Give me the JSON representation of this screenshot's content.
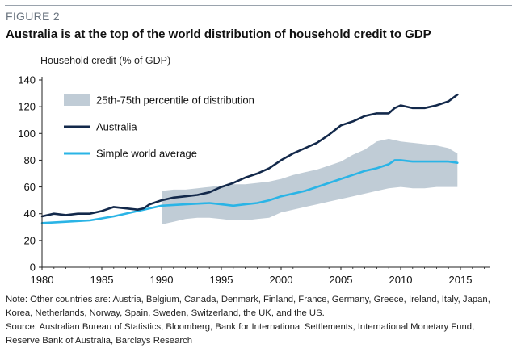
{
  "figure": {
    "label": "FIGURE 2",
    "title": "Australia is at the top of the world distribution of household credit to GDP"
  },
  "notes": [
    "Note: Other countries are: Austria, Belgium, Canada, Denmark, Finland, France, Germany, Greece, Ireland, Italy, Japan,",
    "Korea, Netherlands, Norway, Spain, Sweden, Switzerland, the UK, and the US.",
    "Source: Australian Bureau of Statistics, Bloomberg, Bank for International Settlements, International Monetary Fund,",
    "Reserve Bank of Australia, Barclays Research"
  ],
  "colors": {
    "australia": "#13294b",
    "world": "#2ab4e6",
    "band": "#c0ccd6",
    "axis": "#222222"
  },
  "chart_data": {
    "type": "line",
    "title": "Australia is at the top of the world distribution of household credit to GDP",
    "xlabel": "",
    "ylabel": "Household credit (% of GDP)",
    "xlim": [
      1980,
      2017.5
    ],
    "ylim": [
      0,
      140
    ],
    "xticks": [
      1980,
      1985,
      1990,
      1995,
      2000,
      2005,
      2010,
      2015
    ],
    "yticks": [
      0,
      20,
      40,
      60,
      80,
      100,
      120,
      140
    ],
    "legend": [
      {
        "key": "band",
        "label": "25th-75th percentile of distribution"
      },
      {
        "key": "australia",
        "label": "Australia"
      },
      {
        "key": "world",
        "label": "Simple world average"
      }
    ],
    "series": [
      {
        "name": "Australia",
        "key": "australia",
        "x": [
          1980,
          1981,
          1982,
          1983,
          1984,
          1985,
          1986,
          1987,
          1988,
          1988.5,
          1989,
          1990,
          1991,
          1992,
          1993,
          1994,
          1995,
          1996,
          1997,
          1998,
          1999,
          2000,
          2001,
          2002,
          2003,
          2004,
          2005,
          2006,
          2007,
          2008,
          2009,
          2009.5,
          2010,
          2011,
          2012,
          2013,
          2014,
          2014.75
        ],
        "values": [
          38,
          40,
          39,
          40,
          40,
          42,
          45,
          44,
          43,
          44,
          47,
          50,
          52,
          53,
          54,
          56,
          60,
          63,
          67,
          70,
          74,
          80,
          85,
          89,
          93,
          99,
          106,
          109,
          113,
          115,
          115,
          119,
          121,
          119,
          119,
          121,
          124,
          129
        ]
      },
      {
        "name": "Simple world average",
        "key": "world",
        "x": [
          1980,
          1982,
          1984,
          1986,
          1988,
          1990,
          1992,
          1994,
          1995,
          1996,
          1997,
          1998,
          1999,
          2000,
          2001,
          2002,
          2003,
          2004,
          2005,
          2006,
          2007,
          2008,
          2009,
          2009.5,
          2010,
          2011,
          2012,
          2013,
          2014,
          2014.75
        ],
        "values": [
          33,
          34,
          35,
          38,
          42,
          46,
          47,
          48,
          47,
          46,
          47,
          48,
          50,
          53,
          55,
          57,
          60,
          63,
          66,
          69,
          72,
          74,
          77,
          80,
          80,
          79,
          79,
          79,
          79,
          78
        ]
      }
    ],
    "band": {
      "name": "25th-75th percentile of distribution",
      "key": "band",
      "x": [
        1990,
        1991,
        1992,
        1993,
        1994,
        1995,
        1996,
        1997,
        1998,
        1999,
        2000,
        2001,
        2002,
        2003,
        2004,
        2005,
        2006,
        2007,
        2008,
        2009,
        2010,
        2011,
        2012,
        2013,
        2014,
        2014.75
      ],
      "low": [
        32,
        34,
        36,
        37,
        37,
        36,
        35,
        35,
        36,
        37,
        41,
        43,
        45,
        47,
        49,
        51,
        53,
        55,
        57,
        59,
        60,
        59,
        59,
        60,
        60,
        60
      ],
      "high": [
        57,
        58,
        58,
        59,
        60,
        61,
        62,
        62,
        63,
        64,
        66,
        69,
        71,
        73,
        76,
        79,
        84,
        88,
        94,
        96,
        94,
        93,
        92,
        91,
        89,
        85
      ]
    }
  }
}
